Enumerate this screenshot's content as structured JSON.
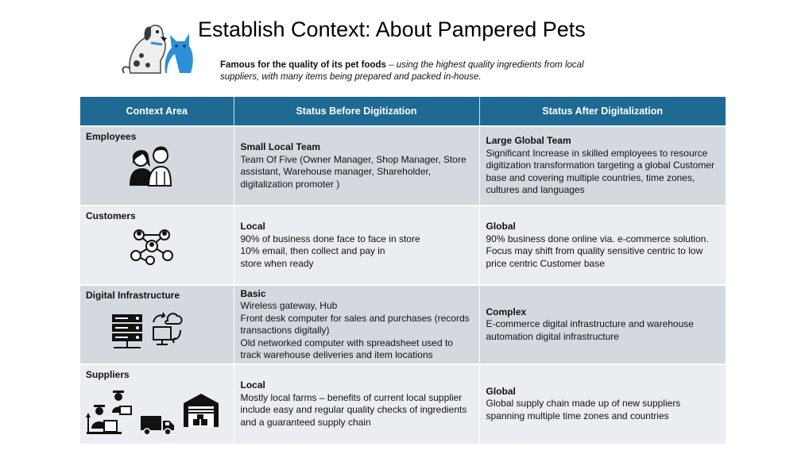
{
  "title": "Establish Context: About Pampered Pets",
  "subtitle": {
    "bold": "Famous for the quality of its pet foods",
    "rest": " – using the highest quality ingredients from local suppliers, with many items being prepared and packed in-house."
  },
  "table": {
    "headers": [
      "Context Area",
      "Status Before Digitization",
      "Status After Digitalization"
    ],
    "rows": [
      {
        "area": "Employees",
        "before_heading": "Small Local Team",
        "before_body": "Team Of Five (Owner Manager, Shop Manager, Store assistant, Warehouse manager, Shareholder, digitalization promoter )",
        "after_heading": "Large Global Team",
        "after_body": "Significant Increase in skilled employees to resource digitization transformation targeting a global Customer base and covering multiple countries, time zones, cultures and languages"
      },
      {
        "area": "Customers",
        "before_heading": "Local",
        "before_body_lines": [
          "90% of business done face to face in store",
          "10% email, then collect and pay in",
          "store when ready"
        ],
        "after_heading": "Global",
        "after_body": "90% business done online via. e-commerce solution. Focus may shift from quality sensitive centric to low price centric Customer base"
      },
      {
        "area": "Digital Infrastructure",
        "before_heading": "Basic",
        "before_body_lines": [
          "Wireless gateway, Hub",
          "Front desk computer for sales and purchases (records transactions digitally)",
          "Old networked computer with spreadsheet used to track warehouse deliveries and item locations"
        ],
        "after_heading": "Complex",
        "after_body": "E-commerce digital infrastructure and warehouse automation digital infrastructure"
      },
      {
        "area": "Suppliers",
        "before_heading": "Local",
        "before_body_lines": [
          "Mostly local farms – benefits of current local supplier",
          "include easy and regular quality checks of ingredients and a guaranteed supply chain"
        ],
        "after_heading": "Global",
        "after_body": "Global supply chain made up of new suppliers spanning multiple time zones and countries"
      }
    ]
  },
  "icons": [
    "dog-icon",
    "cat-icon",
    "couple-icon",
    "network-icon",
    "server-icon",
    "computer-sync-icon",
    "farmer-icon",
    "truck-icon",
    "warehouse-icon"
  ],
  "colors": {
    "header_bg": "#1f6a93",
    "row_shade": "#d4d9e0",
    "row_light": "#eaedf1",
    "accent_blue": "#2e8fd6"
  }
}
